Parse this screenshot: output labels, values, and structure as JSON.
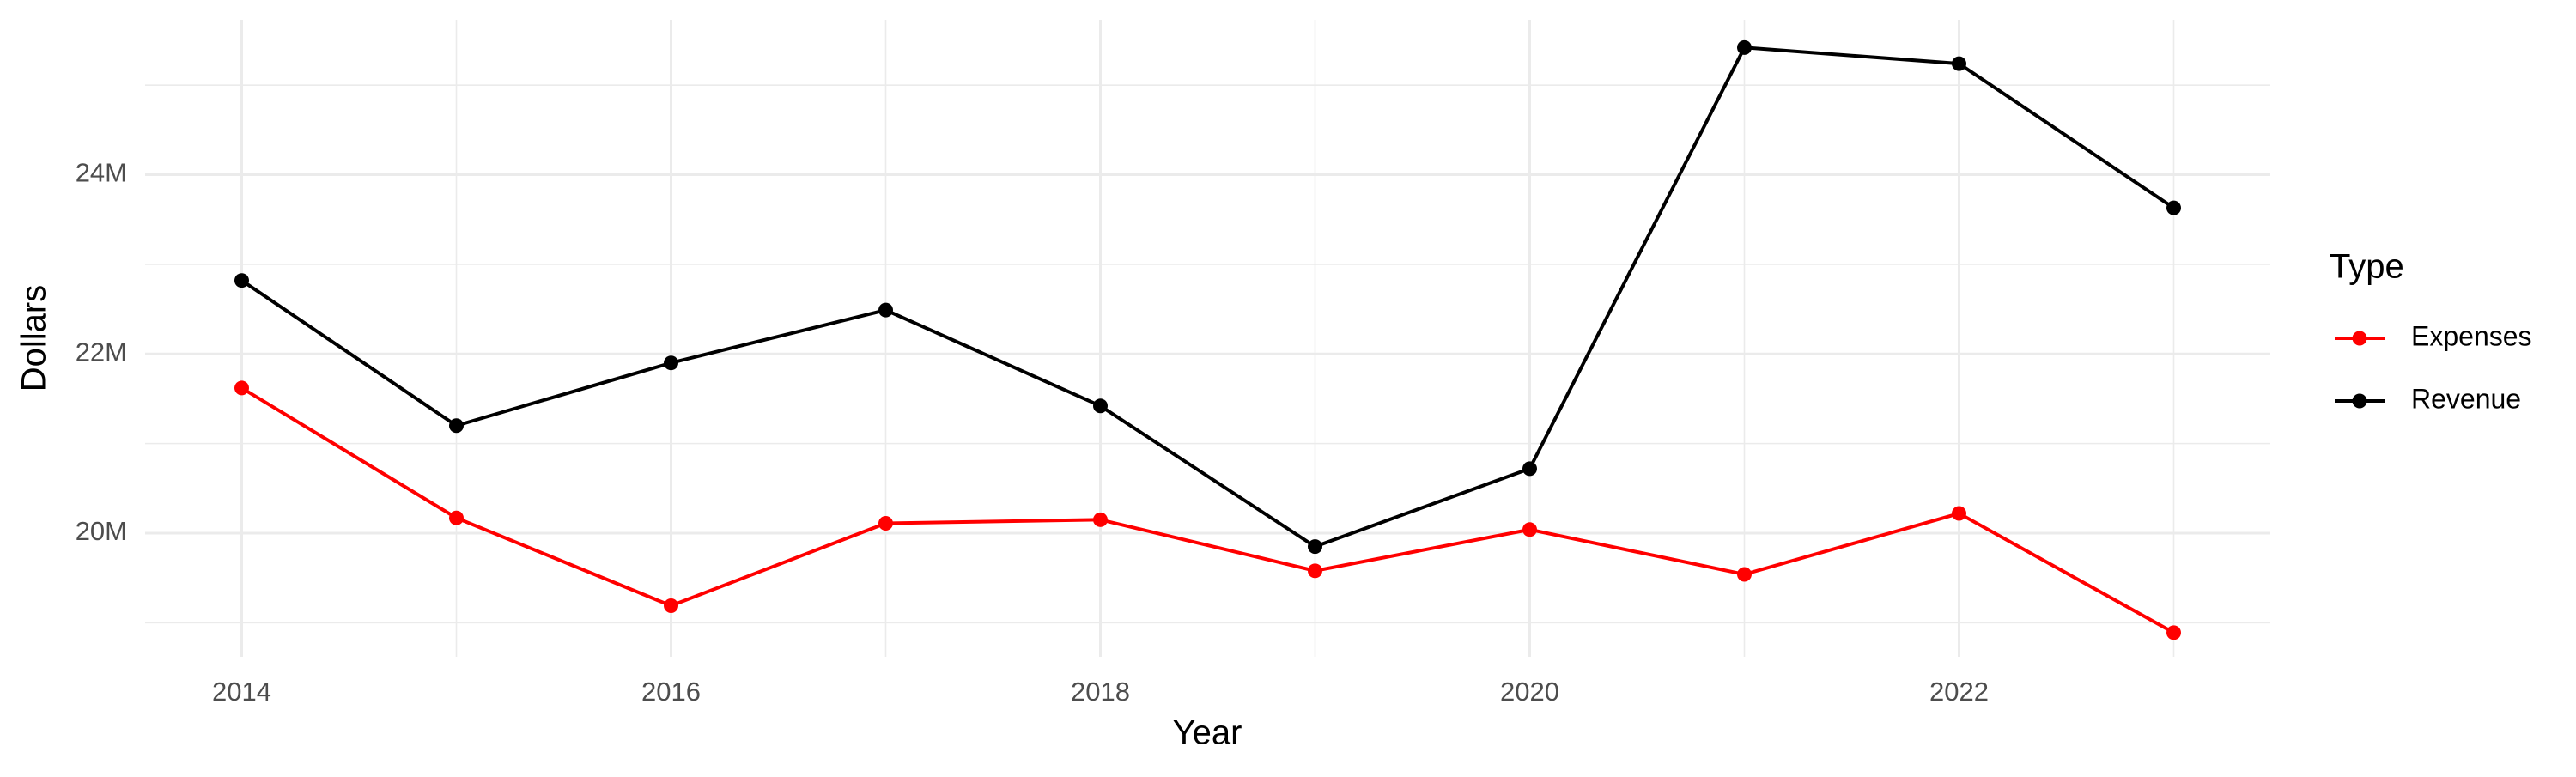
{
  "chart_data": {
    "type": "line",
    "x_label": "Year",
    "y_label": "Dollars",
    "legend_title": "Type",
    "x": [
      2014,
      2015,
      2016,
      2017,
      2018,
      2019,
      2020,
      2021,
      2022,
      2023
    ],
    "series": [
      {
        "name": "Expenses",
        "color": "#ff0000",
        "values": [
          21620000,
          20170000,
          19190000,
          20110000,
          20150000,
          19580000,
          20040000,
          19540000,
          20220000,
          18890000
        ]
      },
      {
        "name": "Revenue",
        "color": "#000000",
        "values": [
          22820000,
          21200000,
          21900000,
          22490000,
          21420000,
          19850000,
          20720000,
          25420000,
          25240000,
          23630000
        ]
      }
    ],
    "xlim": [
      2013.55,
      2023.45
    ],
    "xticks": [
      2014,
      2016,
      2018,
      2020,
      2022
    ],
    "ylim": [
      18620000,
      25730000
    ],
    "yticks": [
      {
        "value": 20000000,
        "label": "20M"
      },
      {
        "value": 22000000,
        "label": "22M"
      },
      {
        "value": 24000000,
        "label": "24M"
      }
    ],
    "grid": true,
    "legend": "right"
  }
}
